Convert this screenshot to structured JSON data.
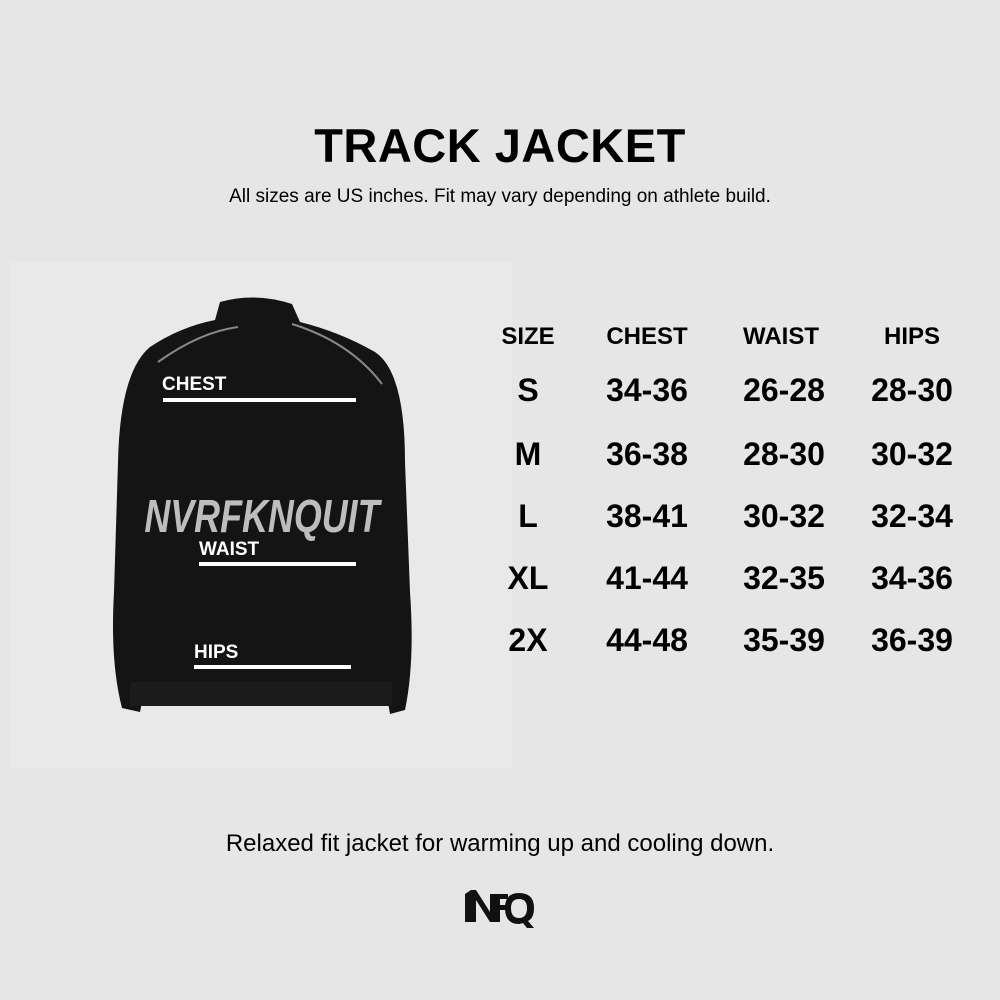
{
  "title": "TRACK JACKET",
  "subtitle": "All sizes are US inches. Fit may vary depending on athlete build.",
  "jacket": {
    "print_text": "NVRFKNQUIT",
    "labels": {
      "chest": "CHEST",
      "waist": "WAIST",
      "hips": "HIPS"
    }
  },
  "table": {
    "headers": [
      "SIZE",
      "CHEST",
      "WAIST",
      "HIPS"
    ],
    "rows": [
      [
        "S",
        "34-36",
        "26-28",
        "28-30"
      ],
      [
        "M",
        "36-38",
        "28-30",
        "30-32"
      ],
      [
        "L",
        "38-41",
        "30-32",
        "32-34"
      ],
      [
        "XL",
        "41-44",
        "32-35",
        "34-36"
      ],
      [
        "2X",
        "44-48",
        "35-39",
        "36-39"
      ]
    ]
  },
  "tagline": "Relaxed fit jacket for warming up and cooling down.",
  "logo": {
    "text": "NFQ"
  },
  "colors": {
    "background": "#e6e6e6",
    "text": "#000000",
    "jacket": "#141414"
  }
}
